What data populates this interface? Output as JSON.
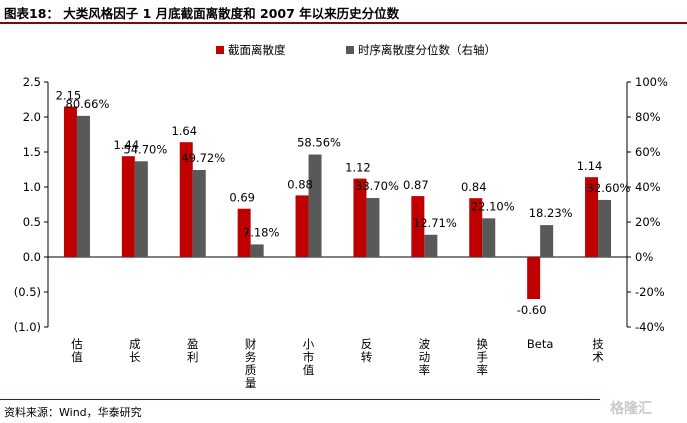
{
  "figure": {
    "title": "图表18： 大类风格因子 1 月底截面离散度和 2007 年以来历史分位数",
    "source": "资料来源：Wind，华泰研究",
    "watermark": "格隆汇"
  },
  "chart_data": {
    "type": "bar",
    "title": "",
    "categories": [
      "估值",
      "成长",
      "盈利",
      "财务质量",
      "小市值",
      "反转",
      "波动率",
      "换手率",
      "Beta",
      "技术"
    ],
    "category_display": [
      "估\n值",
      "成\n长",
      "盈\n利",
      "财\n务\n质\n量",
      "小\n市\n值",
      "反\n转",
      "波\n动\n率",
      "换\n手\n率",
      "Beta",
      "技\n术"
    ],
    "series": [
      {
        "name": "截面离散度",
        "axis": "left",
        "color": "#c00000",
        "values": [
          2.15,
          1.44,
          1.64,
          0.69,
          0.88,
          1.12,
          0.87,
          0.84,
          -0.6,
          1.14
        ],
        "labels": [
          "2.15",
          "1.44",
          "1.64",
          "0.69",
          "0.88",
          "1.12",
          "0.87",
          "0.84",
          "-0.60",
          "1.14"
        ]
      },
      {
        "name": "时序离散度分位数（右轴）",
        "axis": "right",
        "color": "#595959",
        "values": [
          80.66,
          54.7,
          49.72,
          7.18,
          58.56,
          33.7,
          12.71,
          22.1,
          18.23,
          32.6
        ],
        "labels": [
          "80.66%",
          "54.70%",
          "49.72%",
          "7.18%",
          "58.56%",
          "33.70%",
          "12.71%",
          "22.10%",
          "18.23%",
          "32.60%"
        ]
      }
    ],
    "left_axis": {
      "min": -1.0,
      "max": 2.5,
      "ticks": [
        2.5,
        2.0,
        1.5,
        1.0,
        0.5,
        0.0,
        -0.5,
        -1.0
      ],
      "tick_labels": [
        "2.5",
        "2.0",
        "1.5",
        "1.0",
        "0.5",
        "0.0",
        "(0.5)",
        "(1.0)"
      ]
    },
    "right_axis": {
      "min": -40,
      "max": 100,
      "ticks": [
        100,
        80,
        60,
        40,
        20,
        0,
        -20,
        -40
      ],
      "tick_labels": [
        "100%",
        "80%",
        "60%",
        "40%",
        "20%",
        "0%",
        "-20%",
        "-40%"
      ]
    },
    "grid": false,
    "legend_position": "top"
  }
}
